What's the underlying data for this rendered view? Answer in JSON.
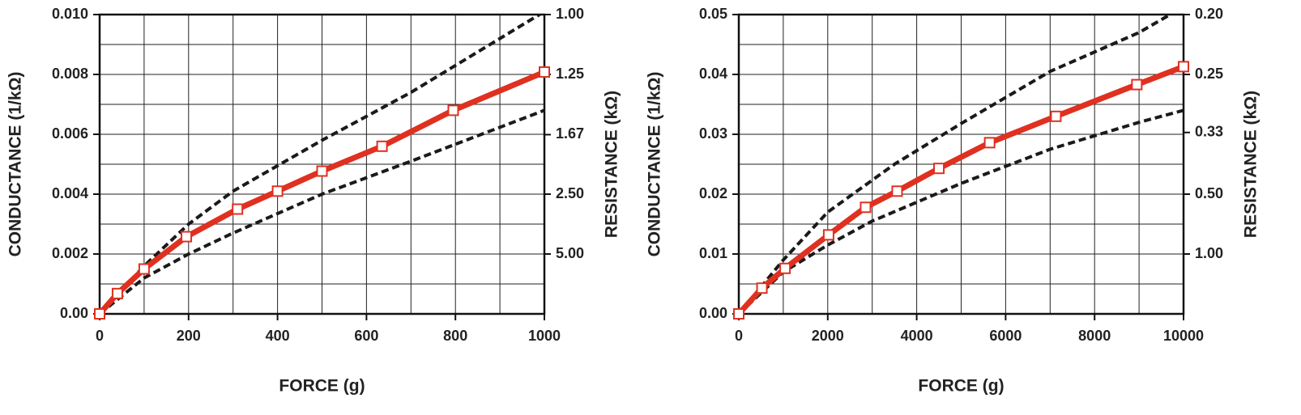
{
  "chart_data": [
    {
      "type": "line",
      "xlabel": "FORCE (g)",
      "ylabel": "CONDUCTANCE (1/kΩ)",
      "y2label": "RESISTANCE (kΩ)",
      "xlim": [
        0,
        1000
      ],
      "xticks": [
        0,
        200,
        400,
        600,
        800,
        1000
      ],
      "ylim": [
        0,
        0.01
      ],
      "yticks": [
        {
          "value": 0,
          "label": "0.00"
        },
        0.002,
        0.004,
        0.006,
        0.008,
        {
          "value": 0.01,
          "label": "0.010"
        }
      ],
      "y2scale": "reciprocal",
      "y2ticks": [
        {
          "value": 1,
          "label": "1.00"
        },
        1.25,
        1.67,
        {
          "value": 2.5,
          "label": "2.50"
        },
        {
          "value": 5,
          "label": "5.00"
        }
      ],
      "grid": true,
      "series": [
        {
          "color": "#1a1a1a",
          "dashed": true,
          "x": [
            0,
            100,
            200,
            300,
            500,
            700,
            1000
          ],
          "values": [
            0,
            0.0016,
            0.003,
            0.0041,
            0.0058,
            0.0074,
            0.0101
          ]
        },
        {
          "color": "#1a1a1a",
          "dashed": true,
          "x": [
            0,
            100,
            200,
            300,
            500,
            700,
            1000
          ],
          "values": [
            0,
            0.0012,
            0.002,
            0.0027,
            0.004,
            0.0051,
            0.0068
          ]
        },
        {
          "color": "#e03020",
          "marker": "square",
          "x": [
            0,
            40,
            100,
            195,
            310,
            400,
            500,
            635,
            795,
            1000
          ],
          "values": [
            0,
            0.00068,
            0.0015,
            0.00258,
            0.0035,
            0.0041,
            0.00477,
            0.0056,
            0.0068,
            0.00808
          ]
        }
      ]
    },
    {
      "type": "line",
      "xlabel": "FORCE (g)",
      "ylabel": "CONDUCTANCE (1/kΩ)",
      "y2label": "RESISTANCE (kΩ)",
      "xlim": [
        0,
        10000
      ],
      "xticks": [
        0,
        2000,
        4000,
        6000,
        8000,
        10000
      ],
      "ylim": [
        0,
        0.05
      ],
      "yticks": [
        {
          "value": 0,
          "label": "0.00"
        },
        0.01,
        0.02,
        0.03,
        0.04,
        0.05
      ],
      "y2scale": "reciprocal",
      "y2ticks": [
        {
          "value": 0.2,
          "label": "0.20"
        },
        0.25,
        0.33,
        {
          "value": 0.5,
          "label": "0.50"
        },
        {
          "value": 1,
          "label": "1.00"
        }
      ],
      "grid": true,
      "series": [
        {
          "color": "#1a1a1a",
          "dashed": true,
          "x": [
            0,
            1000,
            2000,
            3500,
            5000,
            7000,
            9000,
            9700
          ],
          "values": [
            0,
            0.009,
            0.017,
            0.025,
            0.0318,
            0.0405,
            0.047,
            0.05
          ]
        },
        {
          "color": "#1a1a1a",
          "dashed": true,
          "x": [
            0,
            1000,
            2000,
            3000,
            5000,
            7000,
            9000,
            10000
          ],
          "values": [
            0,
            0.007,
            0.0115,
            0.0155,
            0.0218,
            0.0275,
            0.032,
            0.034
          ]
        },
        {
          "color": "#e03020",
          "marker": "square",
          "x": [
            0,
            520,
            1040,
            2020,
            2850,
            3560,
            4500,
            5640,
            7130,
            8950,
            10000
          ],
          "values": [
            0,
            0.0043,
            0.0076,
            0.0132,
            0.0178,
            0.0205,
            0.0243,
            0.0286,
            0.033,
            0.0383,
            0.0413
          ]
        }
      ]
    }
  ]
}
